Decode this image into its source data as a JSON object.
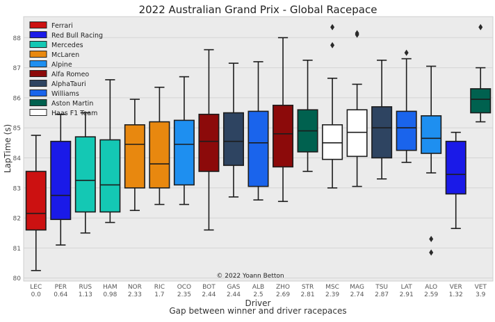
{
  "chart_data": {
    "type": "box",
    "title": "2022 Australian Grand Prix - Global Racepace",
    "xlabel": "Driver",
    "xlabel_sub": "Gap between winner and driver racepaces",
    "ylabel": "LapTime (s)",
    "ylim": [
      79.9,
      88.7
    ],
    "yticks": [
      80,
      81,
      82,
      83,
      84,
      85,
      86,
      87,
      88
    ],
    "grid": true,
    "legend_position": "top-left",
    "annotation": "© 2022 Yoann Betton",
    "legend": [
      {
        "team": "Ferrari",
        "color": "#cc1111"
      },
      {
        "team": "Red Bull Racing",
        "color": "#1a1ae8"
      },
      {
        "team": "Mercedes",
        "color": "#14c8b4"
      },
      {
        "team": "McLaren",
        "color": "#e8880f"
      },
      {
        "team": "Alpine",
        "color": "#1e8ff0"
      },
      {
        "team": "Alfa Romeo",
        "color": "#8c0a0a"
      },
      {
        "team": "AlphaTauri",
        "color": "#2e4461"
      },
      {
        "team": "Williams",
        "color": "#1a64ec"
      },
      {
        "team": "Aston Martin",
        "color": "#00614f"
      },
      {
        "team": "Haas F1 Team",
        "color": "#ffffff"
      }
    ],
    "series": [
      {
        "driver": "LEC",
        "gap": "0.0",
        "team": "Ferrari",
        "min": 80.25,
        "q1": 81.6,
        "median": 82.15,
        "q3": 83.55,
        "max": 84.75,
        "outliers": []
      },
      {
        "driver": "PER",
        "gap": "0.64",
        "team": "Red Bull Racing",
        "min": 81.1,
        "q1": 81.95,
        "median": 82.75,
        "q3": 84.55,
        "max": 85.45,
        "outliers": []
      },
      {
        "driver": "RUS",
        "gap": "1.13",
        "team": "Mercedes",
        "min": 81.5,
        "q1": 82.2,
        "median": 83.25,
        "q3": 84.7,
        "max": 85.5,
        "outliers": []
      },
      {
        "driver": "HAM",
        "gap": "0.98",
        "team": "Mercedes",
        "min": 81.85,
        "q1": 82.2,
        "median": 83.1,
        "q3": 84.6,
        "max": 86.6,
        "outliers": []
      },
      {
        "driver": "NOR",
        "gap": "2.33",
        "team": "McLaren",
        "min": 82.25,
        "q1": 83.0,
        "median": 84.45,
        "q3": 85.1,
        "max": 85.95,
        "outliers": []
      },
      {
        "driver": "RIC",
        "gap": "1.7",
        "team": "McLaren",
        "min": 82.45,
        "q1": 83.0,
        "median": 83.8,
        "q3": 85.2,
        "max": 86.35,
        "outliers": []
      },
      {
        "driver": "OCO",
        "gap": "2.35",
        "team": "Alpine",
        "min": 82.45,
        "q1": 83.1,
        "median": 84.45,
        "q3": 85.25,
        "max": 86.7,
        "outliers": []
      },
      {
        "driver": "BOT",
        "gap": "2.44",
        "team": "Alfa Romeo",
        "min": 81.6,
        "q1": 83.55,
        "median": 84.55,
        "q3": 85.45,
        "max": 87.6,
        "outliers": []
      },
      {
        "driver": "GAS",
        "gap": "2.44",
        "team": "AlphaTauri",
        "min": 82.7,
        "q1": 83.75,
        "median": 84.55,
        "q3": 85.5,
        "max": 87.15,
        "outliers": []
      },
      {
        "driver": "ALB",
        "gap": "2.5",
        "team": "Williams",
        "min": 82.6,
        "q1": 83.05,
        "median": 84.5,
        "q3": 85.55,
        "max": 87.2,
        "outliers": []
      },
      {
        "driver": "ZHO",
        "gap": "2.69",
        "team": "Alfa Romeo",
        "min": 82.55,
        "q1": 83.7,
        "median": 84.8,
        "q3": 85.75,
        "max": 88.0,
        "outliers": []
      },
      {
        "driver": "STR",
        "gap": "2.81",
        "team": "Aston Martin",
        "min": 83.55,
        "q1": 84.2,
        "median": 84.9,
        "q3": 85.6,
        "max": 87.25,
        "outliers": []
      },
      {
        "driver": "MSC",
        "gap": "2.39",
        "team": "Haas F1 Team",
        "min": 83.0,
        "q1": 83.95,
        "median": 84.5,
        "q3": 85.1,
        "max": 86.65,
        "outliers": [
          87.75,
          88.35
        ]
      },
      {
        "driver": "MAG",
        "gap": "2.74",
        "team": "Haas F1 Team",
        "min": 83.05,
        "q1": 84.05,
        "median": 84.85,
        "q3": 85.6,
        "max": 86.45,
        "outliers": [
          88.1,
          88.15
        ]
      },
      {
        "driver": "TSU",
        "gap": "2.87",
        "team": "AlphaTauri",
        "min": 83.3,
        "q1": 84.0,
        "median": 85.0,
        "q3": 85.7,
        "max": 87.25,
        "outliers": []
      },
      {
        "driver": "LAT",
        "gap": "2.91",
        "team": "Williams",
        "min": 83.85,
        "q1": 84.25,
        "median": 85.0,
        "q3": 85.55,
        "max": 87.3,
        "outliers": [
          87.5
        ]
      },
      {
        "driver": "ALO",
        "gap": "2.59",
        "team": "Alpine",
        "min": 83.5,
        "q1": 84.15,
        "median": 84.65,
        "q3": 85.4,
        "max": 87.05,
        "outliers": [
          81.3,
          80.85
        ]
      },
      {
        "driver": "VER",
        "gap": "1.32",
        "team": "Red Bull Racing",
        "min": 81.65,
        "q1": 82.8,
        "median": 83.45,
        "q3": 84.55,
        "max": 84.85,
        "outliers": []
      },
      {
        "driver": "VET",
        "gap": "3.9",
        "team": "Aston Martin",
        "min": 85.2,
        "q1": 85.5,
        "median": 85.95,
        "q3": 86.3,
        "max": 87.0,
        "outliers": [
          88.35
        ]
      }
    ]
  }
}
